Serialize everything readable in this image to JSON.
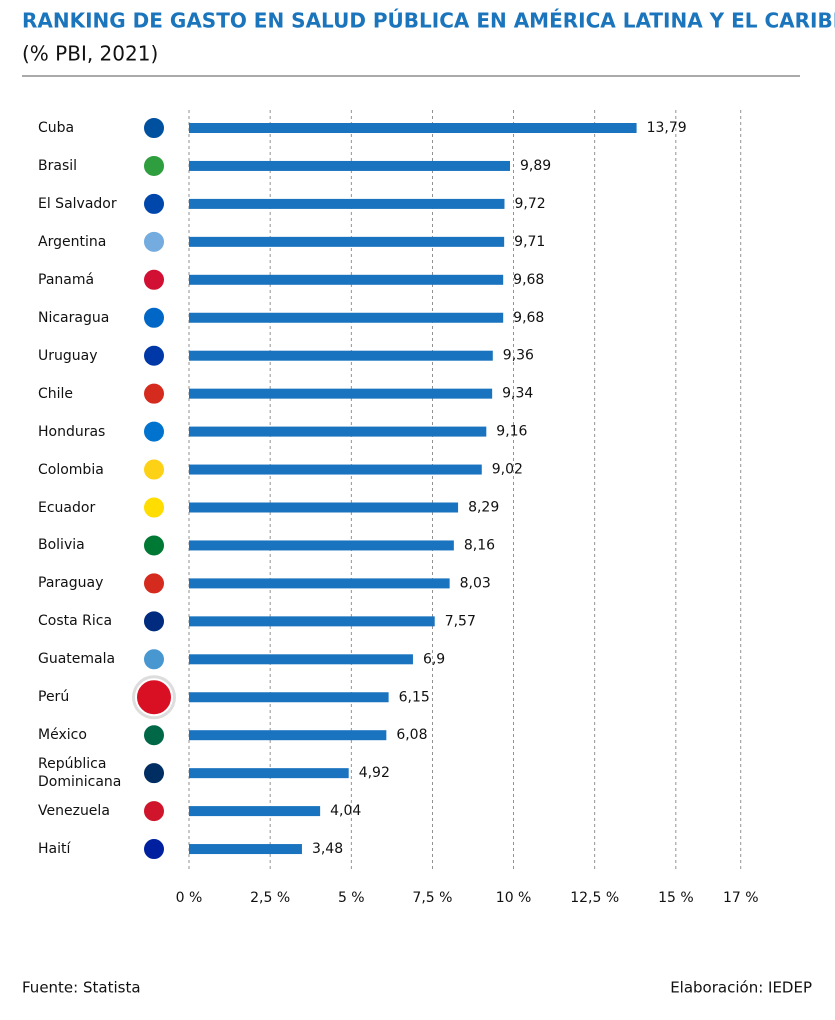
{
  "chart_data": {
    "type": "bar",
    "orientation": "horizontal",
    "title": "RANKING DE GASTO EN SALUD PÚBLICA EN AMÉRICA LATINA Y EL CARIBE",
    "subtitle": "(% PBI, 2021)",
    "categories": [
      "Cuba",
      "Brasil",
      "El Salvador",
      "Argentina",
      "Panamá",
      "Nicaragua",
      "Uruguay",
      "Chile",
      "Honduras",
      "Colombia",
      "Ecuador",
      "Bolivia",
      "Paraguay",
      "Costa Rica",
      "Guatemala",
      "Perú",
      "México",
      "República Dominicana",
      "Venezuela",
      "Haití"
    ],
    "values": [
      13.79,
      9.89,
      9.72,
      9.71,
      9.68,
      9.68,
      9.36,
      9.34,
      9.16,
      9.02,
      8.29,
      8.16,
      8.03,
      7.57,
      6.9,
      6.15,
      6.08,
      4.92,
      4.04,
      3.48
    ],
    "value_labels": [
      "13,79",
      "9,89",
      "9,72",
      "9,71",
      "9,68",
      "9,68",
      "9,36",
      "9,34",
      "9,16",
      "9,02",
      "8,29",
      "8,16",
      "8,03",
      "7,57",
      "6,9",
      "6,15",
      "6,08",
      "4,92",
      "4,04",
      "3,48"
    ],
    "color": "#1a73be",
    "xlim": [
      0,
      17.5
    ],
    "xticks": [
      {
        "value": 0,
        "label": "0 %"
      },
      {
        "value": 2.5,
        "label": "2,5 %"
      },
      {
        "value": 5,
        "label": "5 %"
      },
      {
        "value": 7.5,
        "label": "7,5 %"
      },
      {
        "value": 10,
        "label": "10 %"
      },
      {
        "value": 12.5,
        "label": "12,5 %"
      },
      {
        "value": 15,
        "label": "15 %"
      },
      {
        "value": 17,
        "label": "17 %"
      }
    ],
    "grid": true
  },
  "footer": {
    "source": "Fuente: Statista",
    "credit": "Elaboración: IEDEP"
  }
}
